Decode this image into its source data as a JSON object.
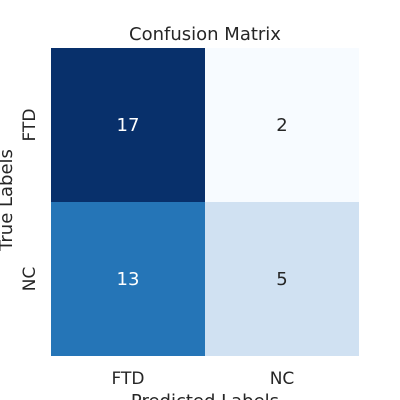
{
  "chart_data": {
    "type": "heatmap",
    "title": "Confusion Matrix",
    "xlabel": "Predicted Labels",
    "ylabel": "True Labels",
    "x_categories": [
      "FTD",
      "NC"
    ],
    "y_categories": [
      "FTD",
      "NC"
    ],
    "values": [
      [
        17,
        2
      ],
      [
        13,
        5
      ]
    ],
    "colormap": "Blues",
    "grid": false,
    "legend": "none"
  }
}
